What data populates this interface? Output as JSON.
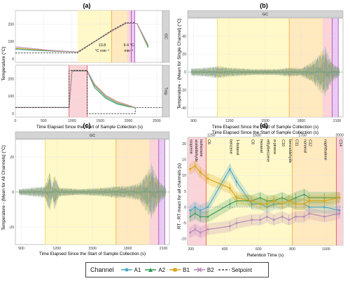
{
  "panels": {
    "a": {
      "title": "(a)",
      "xlabel": "Time Elapsed Since the Start of Sample Collection (s)",
      "ylabel": "Temperature (°C)",
      "xticks": [
        "0",
        "500",
        "1000",
        "1500",
        "2000",
        "2500"
      ],
      "top": {
        "strip": "GC",
        "yticks": [
          "0",
          "100",
          "200"
        ],
        "annot1": [
          "13.8",
          "°C min⁻¹"
        ],
        "annot2": [
          "9.4 °C",
          "min⁻¹"
        ]
      },
      "bottom": {
        "strip": "Trap",
        "yticks": [
          "0",
          "100",
          "200"
        ]
      }
    },
    "b": {
      "title": "(b)",
      "strip": "GC",
      "xlabel": "Time Elapsed Since the Start of Sample Collection (s)",
      "ylabel": "Temperature - (Mean for Single Channel) (°C)",
      "xticks": [
        "900",
        "1200",
        "1500",
        "1800",
        "2100"
      ],
      "yticks": [
        "-40",
        "-20",
        "0",
        "20",
        "40"
      ]
    },
    "c": {
      "title": "(c)",
      "strip": "GC",
      "xlabel": "Time Elapsed Since the Start of Sample Collection (s)",
      "ylabel": "Temperature - (Mean for All Channels) (°C)",
      "xticks": [
        "900",
        "1200",
        "1500",
        "1800",
        "2100"
      ],
      "yticks": [
        "-20",
        "0",
        "20"
      ]
    },
    "d": {
      "title": "(d)",
      "top_label": "Time Elapsed Since the Start of Sample Collection (s)",
      "top_ticks": [
        "1250",
        "1500",
        "1750",
        "2000"
      ],
      "xlabel": "Retention Time (s)",
      "ylabel": "RT - RT mean for all channels (s)",
      "xticks": [
        "200",
        "400",
        "600",
        "800",
        "1000"
      ],
      "yticks": [
        "-10",
        "-5",
        "0",
        "5",
        "10",
        "15",
        "20"
      ],
      "compounds": [
        "isoprene",
        "acetaldehyde",
        "isohexane",
        "C6",
        "benzene",
        "1-butanol",
        "C8",
        "hexanal",
        "ethylbenzene",
        "α-pinene",
        "C10",
        "benzaldehyde",
        "C11",
        "nonanal",
        "C12",
        "naphthalene",
        "C14"
      ]
    }
  },
  "legend": {
    "title": "Channel",
    "items": [
      {
        "label": "A1",
        "color": "#4aa8c8"
      },
      {
        "label": "A2",
        "color": "#2e9a5a"
      },
      {
        "label": "B1",
        "color": "#d9a514"
      },
      {
        "label": "B2",
        "color": "#b586b8"
      },
      {
        "label": "Setpoint",
        "color": "#222222"
      }
    ]
  },
  "chart_data": [
    {
      "type": "line",
      "id": "a-gc",
      "xlim": [
        0,
        2600
      ],
      "ylim": [
        -20,
        280
      ],
      "shaded": [
        {
          "from": 1100,
          "to": 1700,
          "color": "#fff6b5"
        },
        {
          "from": 1700,
          "to": 1980,
          "color": "#ffe2a8"
        },
        {
          "from": 1980,
          "to": 2050,
          "color": "#f8c6cc"
        },
        {
          "from": 2050,
          "to": 2110,
          "color": "#e2b8f0"
        }
      ],
      "vlines": [
        {
          "x": 1700,
          "color": "#e3a32c"
        },
        {
          "x": 2050,
          "color": "#9c27b0"
        },
        {
          "x": 2110,
          "color": "#9c27b0"
        }
      ],
      "setpoint": {
        "x": [
          0,
          1100,
          1700,
          1950,
          2110
        ],
        "y": [
          35,
          35,
          165,
          210,
          210
        ]
      },
      "series": [
        {
          "name": "A1",
          "x": [
            0,
            600,
            1100,
            1700,
            1950,
            2150,
            2350
          ],
          "y": [
            55,
            45,
            40,
            160,
            205,
            205,
            70
          ]
        },
        {
          "name": "A2",
          "x": [
            0,
            600,
            1100,
            1700,
            1950,
            2150,
            2350
          ],
          "y": [
            60,
            47,
            40,
            160,
            205,
            205,
            65
          ]
        },
        {
          "name": "B1",
          "x": [
            0,
            600,
            1100,
            1700,
            1950,
            2150,
            2350
          ],
          "y": [
            62,
            48,
            40,
            160,
            205,
            205,
            75
          ]
        },
        {
          "name": "B2",
          "x": [
            0,
            600,
            1100,
            1700,
            1950,
            2150,
            2350
          ],
          "y": [
            70,
            50,
            40,
            160,
            205,
            205,
            80
          ]
        }
      ]
    },
    {
      "type": "line",
      "id": "a-trap",
      "xlim": [
        0,
        2600
      ],
      "ylim": [
        -20,
        280
      ],
      "shaded": [
        {
          "from": 950,
          "to": 1270,
          "color": "#f8c6cc"
        }
      ],
      "vlines": [
        {
          "x": 950,
          "color": "#e53935"
        },
        {
          "x": 1270,
          "color": "#e53935"
        }
      ],
      "setpoint": {
        "x": [
          0,
          950,
          950,
          1270,
          1270,
          2120,
          2120,
          2600
        ],
        "y": [
          35,
          35,
          250,
          250,
          0,
          0,
          35,
          35
        ]
      },
      "series": [
        {
          "name": "A1",
          "x": [
            0,
            950,
            1000,
            1270,
            1400,
            1600,
            1800,
            2000,
            2120
          ],
          "y": [
            35,
            35,
            248,
            248,
            160,
            95,
            60,
            42,
            35
          ]
        },
        {
          "name": "A2",
          "x": [
            0,
            950,
            1000,
            1270,
            1400,
            1600,
            1800,
            2000,
            2120
          ],
          "y": [
            35,
            35,
            246,
            246,
            150,
            88,
            55,
            40,
            35
          ]
        },
        {
          "name": "B1",
          "x": [
            0,
            950,
            1000,
            1270,
            1400,
            1600,
            1800,
            2000,
            2120
          ],
          "y": [
            35,
            35,
            250,
            250,
            165,
            100,
            65,
            45,
            35
          ]
        },
        {
          "name": "B2",
          "x": [
            0,
            950,
            1000,
            1270,
            1400,
            1600,
            1800,
            2000,
            2120
          ],
          "y": [
            35,
            35,
            247,
            247,
            170,
            105,
            70,
            48,
            35
          ]
        }
      ]
    },
    {
      "type": "line",
      "id": "b",
      "xlim": [
        850,
        2150
      ],
      "ylim": [
        -50,
        60
      ],
      "shaded": [
        {
          "from": 1100,
          "to": 1700,
          "color": "#fff6b5"
        },
        {
          "from": 1700,
          "to": 1980,
          "color": "#ffe2a8"
        },
        {
          "from": 1980,
          "to": 2060,
          "color": "#f8c6cc"
        },
        {
          "from": 2060,
          "to": 2110,
          "color": "#e2b8f0"
        }
      ],
      "vlines": [
        {
          "x": 1100,
          "color": "#f0d34a"
        },
        {
          "x": 1700,
          "color": "#e3a32c"
        },
        {
          "x": 2060,
          "color": "#9c27b0"
        },
        {
          "x": 2110,
          "color": "#9c27b0"
        }
      ],
      "band": {
        "x": [
          880,
          1000,
          1100,
          1200,
          1400,
          1600,
          1700,
          1800,
          1900,
          2000,
          2060,
          2120
        ],
        "amp": [
          5,
          6,
          8,
          6,
          4,
          4,
          6,
          5,
          14,
          32,
          12,
          6
        ]
      }
    },
    {
      "type": "line",
      "id": "c",
      "xlim": [
        850,
        2150
      ],
      "ylim": [
        -30,
        30
      ],
      "shaded": [
        {
          "from": 1100,
          "to": 1700,
          "color": "#fff6b5"
        },
        {
          "from": 1700,
          "to": 1980,
          "color": "#ffe2a8"
        },
        {
          "from": 1980,
          "to": 2060,
          "color": "#f8c6cc"
        },
        {
          "from": 2060,
          "to": 2110,
          "color": "#e2b8f0"
        }
      ],
      "vlines": [
        {
          "x": 1100,
          "color": "#f0d34a"
        },
        {
          "x": 1700,
          "color": "#e3a32c"
        },
        {
          "x": 2060,
          "color": "#9c27b0"
        },
        {
          "x": 2110,
          "color": "#9c27b0"
        }
      ],
      "band": {
        "x": [
          880,
          1000,
          1100,
          1140,
          1160,
          1180,
          1220,
          1400,
          1600,
          1700,
          1800,
          1900,
          2000,
          2060,
          2120
        ],
        "amp": [
          2,
          3,
          4,
          14,
          4,
          12,
          3,
          2,
          3,
          4,
          4,
          6,
          18,
          8,
          3
        ]
      }
    },
    {
      "type": "line",
      "id": "d",
      "xlim": [
        180,
        1100
      ],
      "ylim": [
        -12,
        22
      ],
      "shaded": [
        {
          "from": 180,
          "to": 290,
          "color": "#f8c6cc"
        },
        {
          "from": 290,
          "to": 800,
          "color": "#fff6b5"
        },
        {
          "from": 800,
          "to": 1060,
          "color": "#ffe2a8"
        },
        {
          "from": 1060,
          "to": 1100,
          "color": "#f8c6cc"
        }
      ],
      "vlines": [
        {
          "x": 290,
          "color": "#e53935"
        },
        {
          "x": 800,
          "color": "#e3a32c"
        },
        {
          "x": 1060,
          "color": "#e53935"
        }
      ],
      "compound_x": [
        195,
        225,
        255,
        300,
        430,
        470,
        560,
        610,
        650,
        690,
        740,
        780,
        820,
        870,
        900,
        990,
        1080
      ],
      "series": [
        {
          "name": "A1",
          "x": [
            195,
            225,
            255,
            300,
            430,
            470,
            560,
            610,
            650,
            690,
            740,
            780,
            820,
            870,
            900,
            990,
            1080
          ],
          "y": [
            -1,
            0,
            -1,
            0,
            12,
            8,
            1,
            1,
            0,
            1,
            1,
            2,
            1,
            1,
            0,
            0,
            -1
          ]
        },
        {
          "name": "A2",
          "x": [
            195,
            225,
            255,
            300,
            430,
            470,
            560,
            610,
            650,
            690,
            740,
            780,
            820,
            870,
            900,
            990,
            1080
          ],
          "y": [
            -3,
            -2,
            -3,
            -3,
            1,
            2,
            2,
            3,
            2,
            2,
            3,
            2,
            3,
            4,
            3,
            3,
            3
          ]
        },
        {
          "name": "B1",
          "x": [
            195,
            225,
            255,
            300,
            430,
            470,
            560,
            610,
            650,
            690,
            740,
            780,
            820,
            870,
            900,
            990,
            1080
          ],
          "y": [
            12,
            13,
            11,
            9,
            6,
            3,
            2,
            1,
            1,
            2,
            1,
            2,
            1,
            1,
            2,
            2,
            3
          ]
        },
        {
          "name": "B2",
          "x": [
            195,
            225,
            255,
            300,
            430,
            470,
            560,
            610,
            650,
            690,
            740,
            780,
            820,
            870,
            900,
            990,
            1080
          ],
          "y": [
            -8,
            -7,
            -8,
            -7,
            -6,
            -5,
            -4,
            -4,
            -3,
            -4,
            -3,
            -4,
            -3,
            -3,
            -2,
            -3,
            -2
          ]
        }
      ]
    }
  ]
}
